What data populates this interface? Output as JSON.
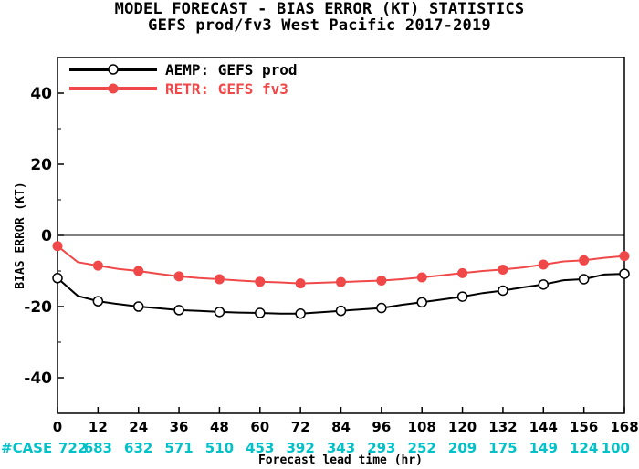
{
  "chart_data": {
    "type": "line",
    "title": "MODEL FORECAST - BIAS ERROR (KT) STATISTICS",
    "subtitle": "GEFS prod/fv3 West Pacific 2017-2019",
    "xlabel": "Forecast lead time (hr)",
    "ylabel": "BIAS ERROR (KT)",
    "xlim": [
      0,
      168
    ],
    "ylim": [
      -50,
      50
    ],
    "x_ticks": [
      "0",
      "12",
      "24",
      "36",
      "48",
      "60",
      "72",
      "84",
      "96",
      "108",
      "120",
      "132",
      "144",
      "156",
      "168"
    ],
    "y_ticks": [
      "40",
      "20",
      "0",
      "-20",
      "-40"
    ],
    "zero_line": true,
    "grid": false,
    "legend_position": "top-left",
    "case_label": "#CASE",
    "case_counts": [
      "722",
      "683",
      "632",
      "571",
      "510",
      "453",
      "392",
      "343",
      "293",
      "252",
      "209",
      "175",
      "149",
      "124",
      "100"
    ],
    "series": [
      {
        "name": "AEMP: GEFS prod",
        "color": "#000000",
        "marker": "open-circle",
        "x": [
          0,
          6,
          12,
          18,
          24,
          30,
          36,
          42,
          48,
          54,
          60,
          66,
          72,
          78,
          84,
          90,
          96,
          102,
          108,
          114,
          120,
          126,
          132,
          138,
          144,
          150,
          156,
          162,
          168
        ],
        "y": [
          -12,
          -17,
          -18.5,
          -19.3,
          -20,
          -20.5,
          -21,
          -21.2,
          -21.5,
          -21.7,
          -21.8,
          -22,
          -22,
          -21.6,
          -21.2,
          -20.8,
          -20.4,
          -19.5,
          -18.8,
          -18,
          -17.2,
          -16.2,
          -15.5,
          -14.6,
          -13.8,
          -12.6,
          -12.3,
          -11,
          -10.8
        ],
        "marker_x": [
          0,
          12,
          24,
          36,
          48,
          60,
          72,
          84,
          96,
          108,
          120,
          132,
          144,
          156,
          168
        ]
      },
      {
        "name": "RETR: GEFS fv3",
        "color": "#f04848",
        "marker": "filled-circle",
        "x": [
          0,
          6,
          12,
          18,
          24,
          30,
          36,
          42,
          48,
          54,
          60,
          66,
          72,
          78,
          84,
          90,
          96,
          102,
          108,
          114,
          120,
          126,
          132,
          138,
          144,
          150,
          156,
          162,
          168
        ],
        "y": [
          -3,
          -7.5,
          -8.5,
          -9.4,
          -10,
          -10.8,
          -11.5,
          -12,
          -12.3,
          -12.7,
          -13,
          -13.2,
          -13.5,
          -13.3,
          -13.1,
          -12.9,
          -12.7,
          -12.3,
          -11.8,
          -11.2,
          -10.6,
          -10,
          -9.6,
          -9,
          -8.2,
          -7.3,
          -7,
          -6.3,
          -5.8
        ],
        "marker_x": [
          0,
          12,
          24,
          36,
          48,
          60,
          72,
          84,
          96,
          108,
          120,
          132,
          144,
          156,
          168
        ]
      }
    ]
  }
}
